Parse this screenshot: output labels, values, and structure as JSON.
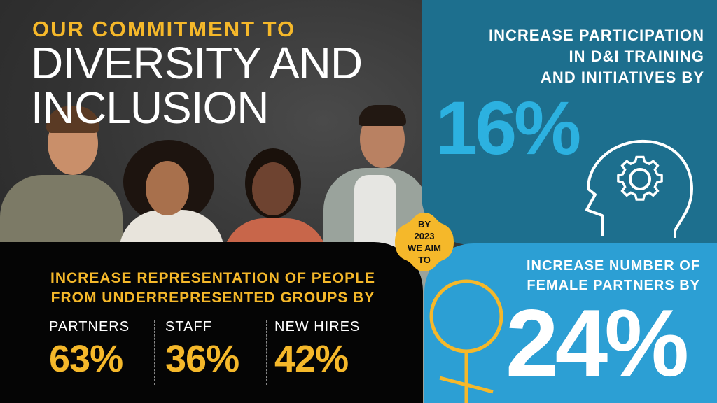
{
  "header": {
    "kicker": "OUR COMMITMENT TO",
    "title_line1": "DIVERSITY AND",
    "title_line2": "INCLUSION"
  },
  "badge": {
    "line1": "BY",
    "line2": "2023",
    "line3": "WE AIM",
    "line4": "TO"
  },
  "training_goal": {
    "line1": "INCREASE PARTICIPATION",
    "line2": "IN D&I TRAINING",
    "line3": "AND INITIATIVES BY",
    "value": "16%",
    "icon": "head-gear-icon"
  },
  "female_partners_goal": {
    "line1": "INCREASE NUMBER OF",
    "line2": "FEMALE PARTNERS BY",
    "value": "24%",
    "icon": "female-symbol-icon"
  },
  "representation_goal": {
    "line1": "INCREASE REPRESENTATION OF PEOPLE",
    "line2": "FROM UNDERREPRESENTED GROUPS BY",
    "stats": [
      {
        "label": "PARTNERS",
        "value": "63%"
      },
      {
        "label": "STAFF",
        "value": "36%"
      },
      {
        "label": "NEW HIRES",
        "value": "42%"
      }
    ]
  },
  "colors": {
    "accent_gold": "#f5b82a",
    "teal_dark": "#1d6f8e",
    "teal_light": "#2c9fd4",
    "highlight_blue": "#2cb1e0",
    "panel_black": "#050505"
  }
}
